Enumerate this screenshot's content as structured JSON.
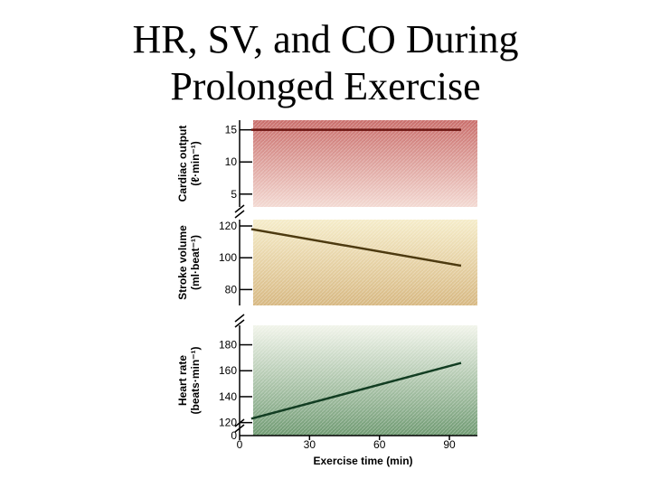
{
  "slide": {
    "title_line1": "HR, SV, and CO During",
    "title_line2": "Prolonged Exercise"
  },
  "chart_data": {
    "type": "line",
    "x_title": "Exercise time (min)",
    "x_ticks": [
      0,
      30,
      60,
      90
    ],
    "panels": [
      {
        "id": "cardiac-output",
        "ylabel_main": "Cardiac output",
        "ylabel_units": "(ℓ·min⁻¹)",
        "yrange": [
          3,
          16.5
        ],
        "yticks": [
          5,
          10,
          15
        ],
        "bg_top": "#c96d6a",
        "bg_bottom": "#f3d9d2",
        "line_color": "#6b1410",
        "x": [
          5,
          95
        ],
        "y": [
          15,
          15
        ]
      },
      {
        "id": "stroke-volume",
        "ylabel_main": "Stroke volume",
        "ylabel_units": "(ml·beat⁻¹)",
        "yrange": [
          70,
          124
        ],
        "yticks": [
          80,
          100,
          120
        ],
        "bg_top": "#f5ecc9",
        "bg_bottom": "#d7b882",
        "line_color": "#4d3a10",
        "x": [
          5,
          95
        ],
        "y": [
          118,
          95
        ]
      },
      {
        "id": "heart-rate",
        "ylabel_main": "Heart rate",
        "ylabel_units": "(beats·min⁻¹)",
        "yrange": [
          110,
          195
        ],
        "yticks": [
          120,
          140,
          160,
          180
        ],
        "bg_top": "#f1f4ea",
        "bg_bottom": "#6f9a72",
        "line_color": "#123d22",
        "x": [
          5,
          95
        ],
        "y": [
          123,
          166
        ]
      }
    ]
  }
}
